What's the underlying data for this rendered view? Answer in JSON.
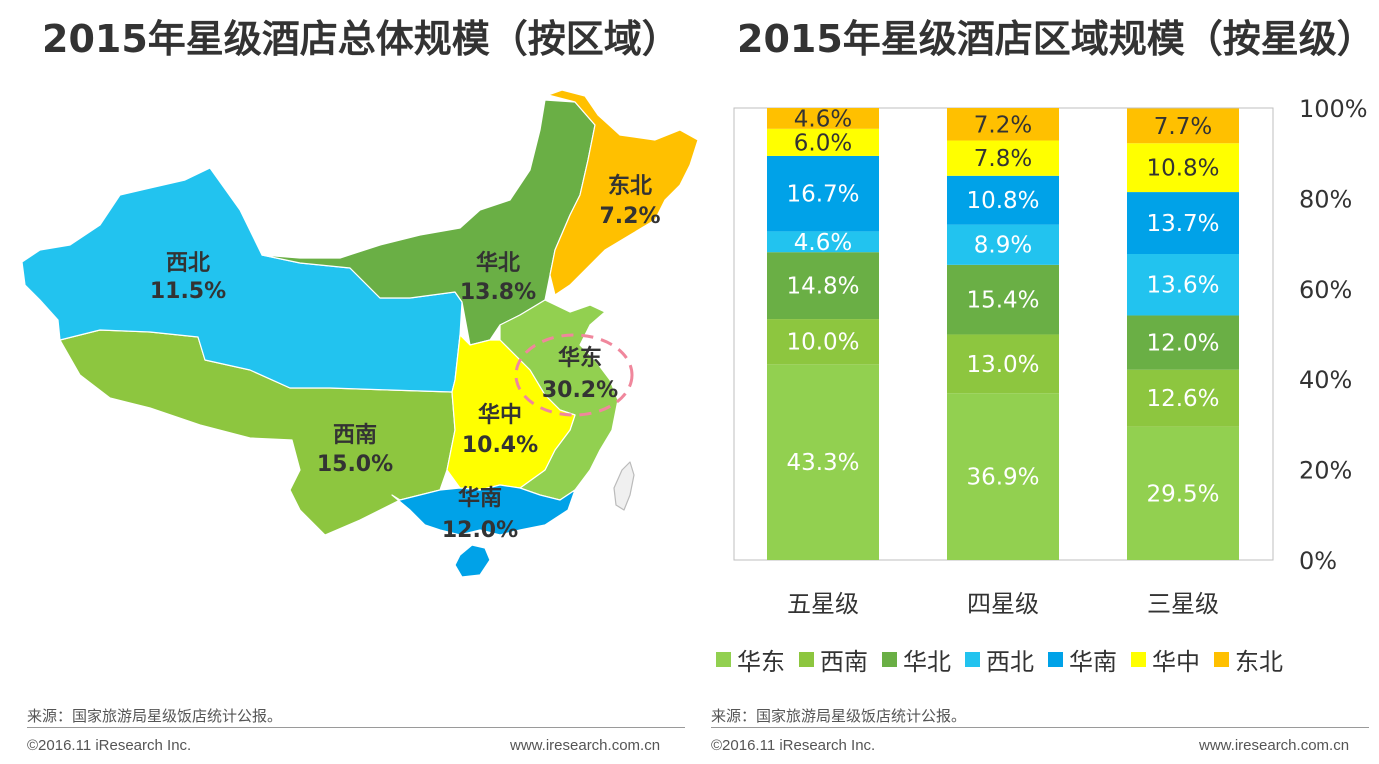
{
  "titles": {
    "left": "2015年星级酒店总体规模（按区域）",
    "right": "2015年星级酒店区域规模（按星级）"
  },
  "colors": {
    "华东": "#92d050",
    "西南": "#8dc63f",
    "华北": "#6aaf45",
    "西北": "#22c3ef",
    "华南": "#00a2e8",
    "华中": "#ffff00",
    "东北": "#ffc000"
  },
  "map": {
    "regions": [
      {
        "name": "西北",
        "value": "11.5%"
      },
      {
        "name": "华北",
        "value": "13.8%"
      },
      {
        "name": "东北",
        "value": "7.2%"
      },
      {
        "name": "华东",
        "value": "30.2%"
      },
      {
        "name": "华中",
        "value": "10.4%"
      },
      {
        "name": "西南",
        "value": "15.0%"
      },
      {
        "name": "华南",
        "value": "12.0%"
      }
    ]
  },
  "chart_data": {
    "type": "bar",
    "stacked": true,
    "percent": true,
    "categories": [
      "五星级",
      "四星级",
      "三星级"
    ],
    "series": [
      {
        "name": "华东",
        "values": [
          43.3,
          36.9,
          29.5
        ],
        "labels": [
          "43.3%",
          "36.9%",
          "29.5%"
        ]
      },
      {
        "name": "西南",
        "values": [
          10.0,
          13.0,
          12.6
        ],
        "labels": [
          "10.0%",
          "13.0%",
          "12.6%"
        ]
      },
      {
        "name": "华北",
        "values": [
          14.8,
          15.4,
          12.0
        ],
        "labels": [
          "14.8%",
          "15.4%",
          "12.0%"
        ]
      },
      {
        "name": "西北",
        "values": [
          4.6,
          8.9,
          13.6
        ],
        "labels": [
          "4.6%",
          "8.9%",
          "13.6%"
        ]
      },
      {
        "name": "华南",
        "values": [
          16.7,
          10.8,
          13.7
        ],
        "labels": [
          "16.7%",
          "10.8%",
          "13.7%"
        ]
      },
      {
        "name": "华中",
        "values": [
          6.0,
          7.8,
          10.8
        ],
        "labels": [
          "6.0%",
          "7.8%",
          "10.8%"
        ]
      },
      {
        "name": "东北",
        "values": [
          4.6,
          7.2,
          7.7
        ],
        "labels": [
          "4.6%",
          "7.2%",
          "7.7%"
        ]
      }
    ],
    "yticks": [
      "0%",
      "20%",
      "40%",
      "60%",
      "80%",
      "100%"
    ],
    "ylim": [
      0,
      100
    ],
    "legend_position": "bottom"
  },
  "footer": {
    "source_left": "来源：国家旅游局星级饭店统计公报。",
    "source_right": "来源：国家旅游局星级饭店统计公报。",
    "copyright_left": "©2016.11 iResearch Inc.",
    "copyright_right": "©2016.11 iResearch Inc.",
    "website_left": "www.iresearch.com.cn",
    "website_right": "www.iresearch.com.cn"
  }
}
